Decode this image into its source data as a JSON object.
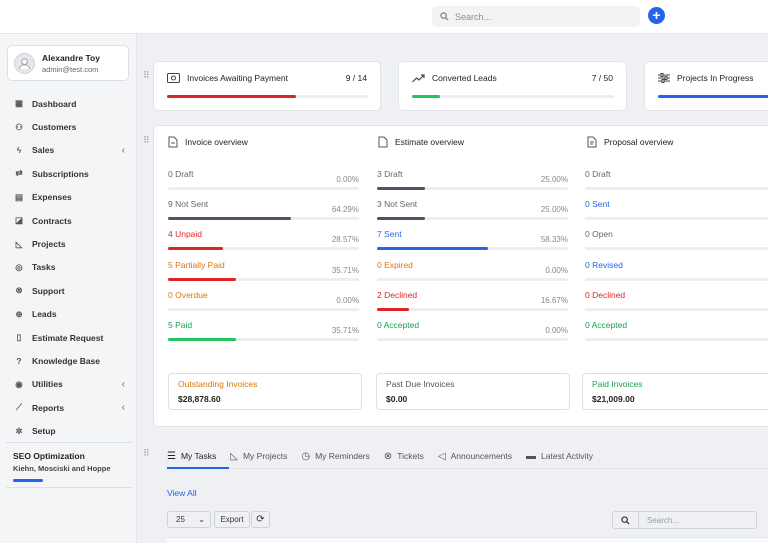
{
  "topbar": {
    "search_placeholder": "Search...",
    "add_label": "+"
  },
  "user": {
    "name": "Alexandre Toy",
    "email": "admin@test.com"
  },
  "sidebar": {
    "items": [
      {
        "label": "Dashboard",
        "icon": "dashboard-icon"
      },
      {
        "label": "Customers",
        "icon": "user-icon"
      },
      {
        "label": "Sales",
        "icon": "bolt-icon",
        "chevron": "‹"
      },
      {
        "label": "Subscriptions",
        "icon": "repeat-icon"
      },
      {
        "label": "Expenses",
        "icon": "file-icon"
      },
      {
        "label": "Contracts",
        "icon": "contract-icon"
      },
      {
        "label": "Projects",
        "icon": "chart-icon"
      },
      {
        "label": "Tasks",
        "icon": "check-circle-icon"
      },
      {
        "label": "Support",
        "icon": "lifebuoy-icon"
      },
      {
        "label": "Leads",
        "icon": "crosshair-icon"
      },
      {
        "label": "Estimate Request",
        "icon": "document-icon"
      },
      {
        "label": "Knowledge Base",
        "icon": "question-icon"
      },
      {
        "label": "Utilities",
        "icon": "dot-circle-icon",
        "chevron": "‹"
      },
      {
        "label": "Reports",
        "icon": "line-chart-icon",
        "chevron": "‹"
      },
      {
        "label": "Setup",
        "icon": "gear-icon"
      }
    ],
    "project": {
      "title": "SEO Optimization",
      "client": "Kiehn, Mosciski and Hoppe",
      "progress": 0.25
    }
  },
  "stats": [
    {
      "title": "Invoices Awaiting Payment",
      "value": "9 / 14",
      "progress": 0.643,
      "color": "#dc2626"
    },
    {
      "title": "Converted Leads",
      "value": "7 / 50",
      "progress": 0.14,
      "color": "#22c55e"
    },
    {
      "title": "Projects In Progress",
      "value": "",
      "progress": 1.0,
      "color": "#2563eb"
    }
  ],
  "invoice_overview": {
    "title": "Invoice overview",
    "rows": [
      {
        "label": "0 Draft",
        "pct": "0.00%",
        "value": 0,
        "color": "#666666",
        "bar": "#4b5563"
      },
      {
        "label": "9 Not Sent",
        "pct": "64.29%",
        "value": 64.29,
        "color": "#666666",
        "bar": "#4b5563"
      },
      {
        "label": "4 Unpaid",
        "pct": "28.57%",
        "value": 28.57,
        "color": "#dc2626",
        "bar": "#dc2626"
      },
      {
        "label": "5 Partially Paid",
        "pct": "35.71%",
        "value": 35.71,
        "color": "#d97706",
        "bar": "#dc2626"
      },
      {
        "label": "0 Overdue",
        "pct": "0.00%",
        "value": 0,
        "color": "#d97706",
        "bar": "#d97706"
      },
      {
        "label": "5 Paid",
        "pct": "35.71%",
        "value": 35.71,
        "color": "#16a34a",
        "bar": "#22c55e"
      }
    ]
  },
  "estimate_overview": {
    "title": "Estimate overview",
    "rows": [
      {
        "label": "3 Draft",
        "pct": "25.00%",
        "value": 25,
        "color": "#666666",
        "bar": "#4b5563"
      },
      {
        "label": "3 Not Sent",
        "pct": "25.00%",
        "value": 25,
        "color": "#666666",
        "bar": "#4b5563"
      },
      {
        "label": "7 Sent",
        "pct": "58.33%",
        "value": 58.33,
        "color": "#2563eb",
        "bar": "#2563eb"
      },
      {
        "label": "0 Expired",
        "pct": "0.00%",
        "value": 0,
        "color": "#d97706",
        "bar": "#d97706"
      },
      {
        "label": "2 Declined",
        "pct": "16.67%",
        "value": 16.67,
        "color": "#dc2626",
        "bar": "#dc2626"
      },
      {
        "label": "0 Accepted",
        "pct": "0.00%",
        "value": 0,
        "color": "#16a34a",
        "bar": "#22c55e"
      }
    ]
  },
  "proposal_overview": {
    "title": "Proposal overview",
    "rows": [
      {
        "label": "0 Draft",
        "color": "#666666"
      },
      {
        "label": "0 Sent",
        "color": "#2563eb"
      },
      {
        "label": "0 Open",
        "color": "#666666"
      },
      {
        "label": "0 Revised",
        "color": "#2563eb"
      },
      {
        "label": "0 Declined",
        "color": "#dc2626"
      },
      {
        "label": "0 Accepted",
        "color": "#16a34a"
      }
    ]
  },
  "summaries": [
    {
      "label": "Outstanding Invoices",
      "value": "$28,878.60",
      "color": "#d97706"
    },
    {
      "label": "Past Due Invoices",
      "value": "$0.00",
      "color": "#555555"
    },
    {
      "label": "Paid Invoices",
      "value": "$21,009.00",
      "color": "#16a34a"
    }
  ],
  "tabs": [
    {
      "label": "My Tasks",
      "icon": "list-icon"
    },
    {
      "label": "My Projects",
      "icon": "chart-icon"
    },
    {
      "label": "My Reminders",
      "icon": "clock-icon"
    },
    {
      "label": "Tickets",
      "icon": "lifebuoy-icon"
    },
    {
      "label": "Announcements",
      "icon": "megaphone-icon"
    },
    {
      "label": "Latest Activity",
      "icon": "card-icon"
    }
  ],
  "table": {
    "view_all": "View All",
    "page_size": "25",
    "export_label": "Export",
    "search_placeholder": "Search..."
  }
}
